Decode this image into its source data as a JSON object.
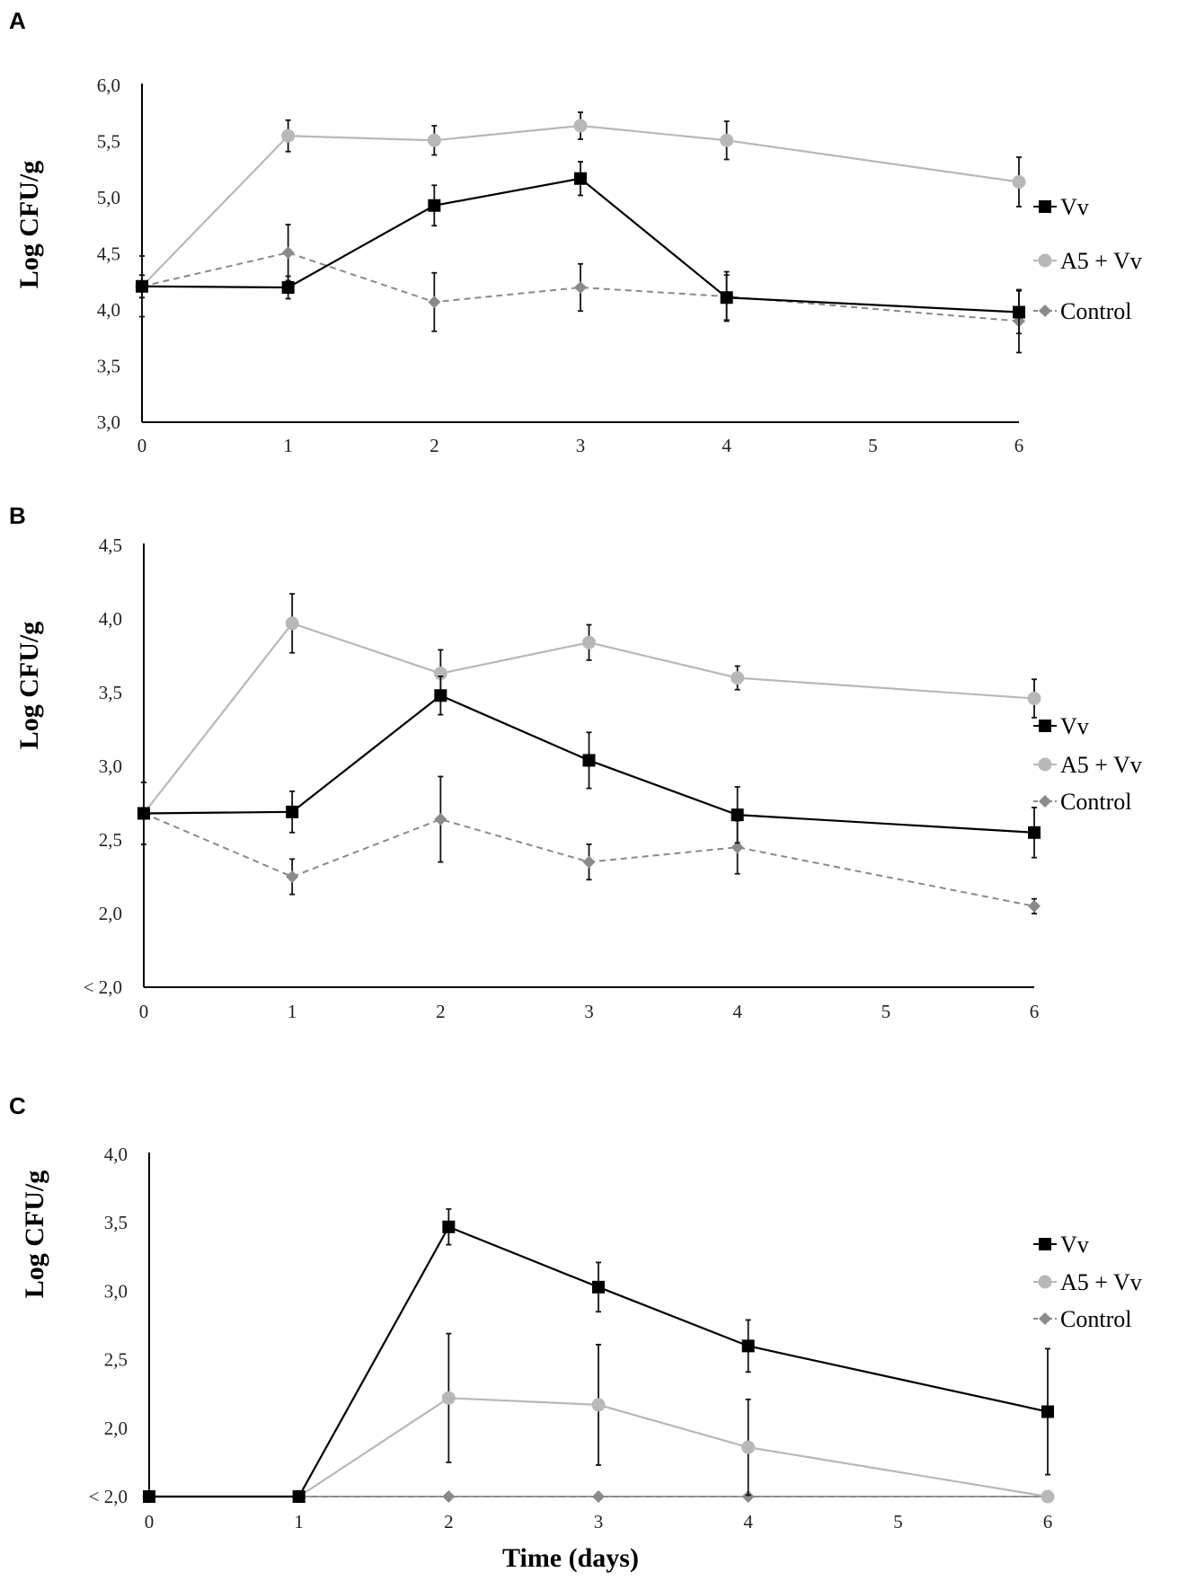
{
  "colors": {
    "Vv": "#000000",
    "A5 + Vv": "#b8b8b8",
    "Control": "#8a8a8a",
    "axis": "#000000"
  },
  "chart_data": [
    {
      "panel": "A",
      "type": "line",
      "ylabel": "Log CFU/g",
      "xlabel": "",
      "x": [
        0,
        1,
        2,
        3,
        4,
        6
      ],
      "xticks": [
        "0",
        "1",
        "2",
        "3",
        "4",
        "5",
        "6"
      ],
      "ylim": [
        3.0,
        6.0
      ],
      "yticks": [
        "3,0",
        "3,5",
        "4,0",
        "4,5",
        "5,0",
        "5,5",
        "6,0"
      ],
      "legend": [
        "Vv",
        "A5 + Vv",
        "Control"
      ],
      "series": [
        {
          "name": "Vv",
          "values": [
            4.21,
            4.2,
            4.93,
            5.17,
            4.11,
            3.98
          ],
          "errors": [
            0.1,
            0.1,
            0.18,
            0.15,
            0.2,
            0.19
          ]
        },
        {
          "name": "A5 + Vv",
          "values": [
            4.21,
            5.55,
            5.51,
            5.64,
            5.51,
            5.14
          ],
          "errors": [
            0.1,
            0.14,
            0.13,
            0.12,
            0.17,
            0.22
          ]
        },
        {
          "name": "Control",
          "values": [
            4.21,
            4.51,
            4.07,
            4.2,
            4.12,
            3.9
          ],
          "errors": [
            0.27,
            0.25,
            0.26,
            0.21,
            0.22,
            0.28
          ]
        }
      ]
    },
    {
      "panel": "B",
      "type": "line",
      "ylabel": "Log CFU/g",
      "xlabel": "",
      "x": [
        0,
        1,
        2,
        3,
        4,
        6
      ],
      "xticks": [
        "0",
        "1",
        "2",
        "3",
        "4",
        "5",
        "6"
      ],
      "ylim": [
        1.5,
        4.5
      ],
      "yticks": [
        "< 2,0",
        "2,0",
        "2,5",
        "3,0",
        "3,5",
        "4,0",
        "4,5"
      ],
      "legend": [
        "Vv",
        "A5 + Vv",
        "Control"
      ],
      "series": [
        {
          "name": "Vv",
          "values": [
            2.68,
            2.69,
            3.48,
            3.04,
            2.67,
            2.55
          ],
          "errors": [
            0.21,
            0.14,
            0.13,
            0.19,
            0.19,
            0.17
          ]
        },
        {
          "name": "A5 + Vv",
          "values": [
            2.68,
            3.97,
            3.63,
            3.84,
            3.6,
            3.46
          ],
          "errors": [
            0.21,
            0.2,
            0.16,
            0.12,
            0.08,
            0.13
          ]
        },
        {
          "name": "Control",
          "values": [
            2.68,
            2.25,
            2.64,
            2.35,
            2.45,
            2.05
          ],
          "errors": [
            0.21,
            0.12,
            0.29,
            0.12,
            0.18,
            0.05
          ]
        }
      ]
    },
    {
      "panel": "C",
      "type": "line",
      "ylabel": "Log CFU/g",
      "xlabel": "Time (days)",
      "x": [
        0,
        1,
        2,
        3,
        4,
        6
      ],
      "xticks": [
        "0",
        "1",
        "2",
        "3",
        "4",
        "5",
        "6"
      ],
      "ylim": [
        1.5,
        4.0
      ],
      "yticks": [
        "< 2,0",
        "2,0",
        "2,5",
        "3,0",
        "3,5",
        "4,0"
      ],
      "legend": [
        "Vv",
        "A5 + Vv",
        "Control"
      ],
      "series": [
        {
          "name": "Vv",
          "values": [
            1.5,
            1.5,
            3.47,
            3.03,
            2.6,
            2.12
          ],
          "errors": [
            0,
            0,
            0.13,
            0.18,
            0.19,
            0.46
          ]
        },
        {
          "name": "A5 + Vv",
          "values": [
            1.5,
            1.5,
            2.22,
            2.17,
            1.86,
            1.5
          ],
          "errors": [
            0,
            0,
            0.47,
            0.44,
            0.35,
            0
          ]
        },
        {
          "name": "Control",
          "values": [
            1.5,
            1.5,
            1.5,
            1.5,
            1.5,
            1.5
          ],
          "errors": [
            0,
            0,
            0,
            0,
            0,
            0
          ]
        }
      ]
    }
  ]
}
